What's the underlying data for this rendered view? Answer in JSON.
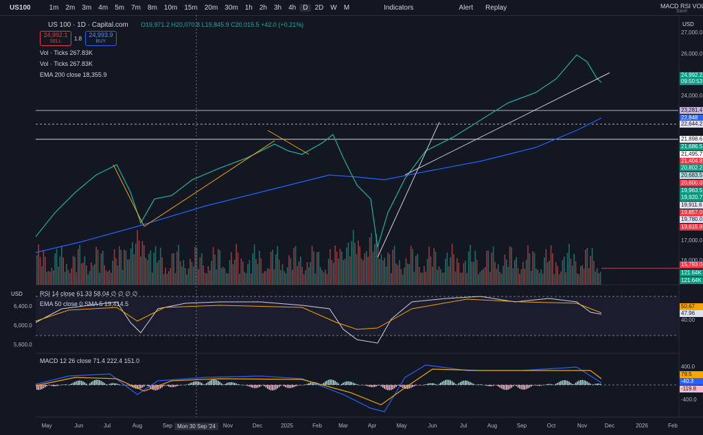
{
  "toolbar": {
    "symbol": "US100",
    "intervals": [
      "1m",
      "2m",
      "3m",
      "4m",
      "5m",
      "7m",
      "8m",
      "10m",
      "15m",
      "20m",
      "30m",
      "1h",
      "2h",
      "3h",
      "4h",
      "D",
      "2D",
      "W",
      "M"
    ],
    "indicators": "Indicators",
    "alert": "Alert",
    "replay": "Replay",
    "layout_name": "MACD RSI VOL",
    "save": "Save"
  },
  "legend": {
    "title": "US 100 · 1D · Capital.com",
    "ohlc": "O19,971.2 H20,070.8 L19,845.9 C20,015.5 +42.0 (+0.21%)",
    "sell_price": "24,992.1",
    "sell": "SELL",
    "spread": "1.8",
    "buy_price": "24,993.9",
    "buy": "BUY",
    "studies": [
      "Vol · Ticks 267.83K",
      "Vol · Ticks 267.83K",
      "EMA 200 close 18,355.9"
    ]
  },
  "price_axis": {
    "currency": "USD",
    "labels": [
      "27,000.0",
      "26,000.0",
      "24,992.2",
      "09:50:53",
      "24,000.0",
      "23,281.4",
      "22,848",
      "22,644.2",
      "21,898.6",
      "21,686.5",
      "21,495.7",
      "21,404.8",
      "20,802.2",
      "20,683.5",
      "20,600.0",
      "19,963.5",
      "19,920.7",
      "19,911.6",
      "19,857.0",
      "19,780.0",
      "19,615.8",
      "17,000.0",
      "16,000.0",
      "15,793.0",
      "121.64K",
      "121.64K"
    ]
  },
  "rsi_pane": {
    "currency": "USD",
    "legend": [
      "RSI 14 close 61.33 58.04 ∅ ∅ ∅ ∅",
      "EMA 50 close 0 SMA 5 19,414.5"
    ],
    "left_labels": [
      "6,400.0",
      "6,000.0",
      "5,600.0"
    ],
    "right_labels": [
      "50.67",
      "47.96",
      "40.00"
    ]
  },
  "macd_pane": {
    "legend": "MACD 12 26 close 71.4 222.4 151.0",
    "right_labels": [
      "400.0",
      "79.5",
      "-40.3",
      "-119.8",
      "-400.0"
    ]
  },
  "time_axis": {
    "labels": [
      "May",
      "Jun",
      "Jul",
      "Aug",
      "Sep",
      "Mon 30 Sep '24",
      "Nov",
      "Dec",
      "2025",
      "Feb",
      "Mar",
      "Apr",
      "May",
      "Jun",
      "Jul",
      "Aug",
      "Sep",
      "Oct",
      "Nov",
      "Dec",
      "2026",
      "Feb"
    ]
  }
}
